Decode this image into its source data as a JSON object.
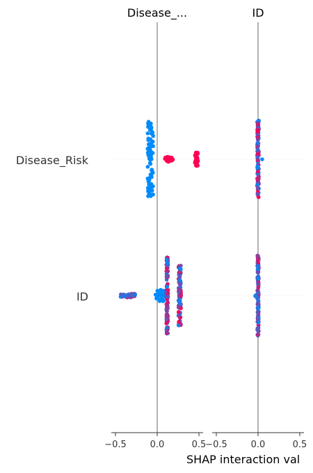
{
  "chart_data": {
    "type": "scatter",
    "subtype": "shap-interaction-summary",
    "xlabel": "SHAP interaction val",
    "xlim": [
      -0.55,
      0.55
    ],
    "x_ticks": [
      -0.5,
      0.0,
      0.5
    ],
    "x_tick_labels": [
      "−0.5",
      "0.0",
      "0.5"
    ],
    "features": [
      "Disease_Risk",
      "ID"
    ],
    "column_titles": [
      "Disease_...",
      "ID"
    ],
    "colors": {
      "low": "#008bfb",
      "high": "#ff0052",
      "axis": "#333333",
      "zero_line": "#999999",
      "guide": "#cccccc"
    },
    "panels": [
      {
        "column": "Disease_...",
        "row": "Disease_Risk",
        "clusters": [
          {
            "center": -0.08,
            "spread": 0.035,
            "count": 90,
            "height": 0.75,
            "color": "low"
          },
          {
            "center": 0.14,
            "spread": 0.05,
            "count": 22,
            "height": 0.05,
            "color": "high"
          },
          {
            "center": 0.47,
            "spread": 0.02,
            "count": 28,
            "height": 0.14,
            "color": "high"
          }
        ]
      },
      {
        "column": "ID",
        "row": "Disease_Risk",
        "clusters": [
          {
            "center": 0.0,
            "spread": 0.01,
            "count": 120,
            "height": 0.78,
            "color": "mixed"
          },
          {
            "center": 0.05,
            "spread": 0.005,
            "count": 1,
            "height": 0.0,
            "color": "low"
          }
        ]
      },
      {
        "column": "Disease_...",
        "row": "ID",
        "clusters": [
          {
            "center": -0.35,
            "spread": 0.09,
            "count": 35,
            "height": 0.04,
            "color": "mixed"
          },
          {
            "center": 0.03,
            "spread": 0.05,
            "count": 25,
            "height": 0.12,
            "color": "low"
          },
          {
            "center": 0.12,
            "spread": 0.01,
            "count": 110,
            "height": 0.78,
            "color": "mixed"
          },
          {
            "center": 0.27,
            "spread": 0.015,
            "count": 95,
            "height": 0.6,
            "color": "mixed"
          }
        ]
      },
      {
        "column": "ID",
        "row": "ID",
        "clusters": [
          {
            "center": 0.0,
            "spread": 0.008,
            "count": 130,
            "height": 0.8,
            "color": "mixed"
          },
          {
            "center": -0.03,
            "spread": 0.005,
            "count": 4,
            "height": 0.02,
            "color": "mixed"
          }
        ]
      }
    ]
  }
}
